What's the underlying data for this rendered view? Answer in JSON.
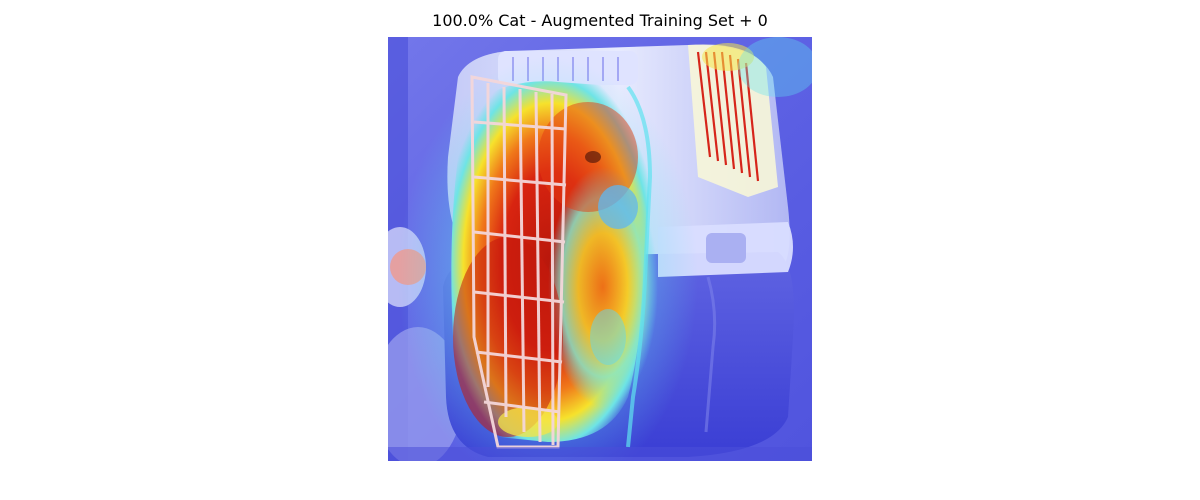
{
  "figure": {
    "title": "100.0% Cat - Augmented Training Set + 0"
  },
  "image": {
    "subject": "cat inside a pet carrier with a wire door, overlaid with a jet-colormap attention heatmap",
    "colormap": "jet",
    "palette": {
      "background_blue": "#6a6ee8",
      "deep_blue": "#3b3fd6",
      "cyan": "#5fe3f0",
      "yellow": "#f4f030",
      "orange": "#f08a1e",
      "red": "#c81d0e",
      "dark_red": "#8e1206",
      "white_carrier": "#e8ecff",
      "wire": "#f4d7da"
    }
  }
}
